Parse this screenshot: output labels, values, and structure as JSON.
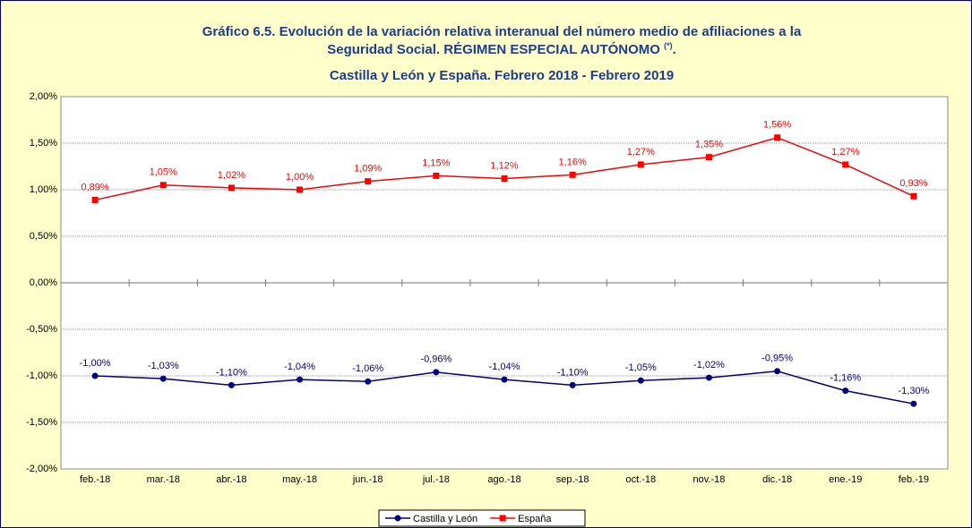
{
  "chart_data": {
    "type": "line",
    "title": [
      "Gráfico 6.5. Evolución de la variación relativa interanual del número medio de  afiliaciones a la",
      "Seguridad Social. RÉGIMEN ESPECIAL AUTÓNOMO"
    ],
    "title_note": "(*)",
    "title_end": ".",
    "subtitle": "Castilla y León y España. Febrero 2018 - Febrero 2019",
    "categories": [
      "feb.-18",
      "mar.-18",
      "abr.-18",
      "may.-18",
      "jun.-18",
      "jul.-18",
      "ago.-18",
      "sep.-18",
      "oct.-18",
      "nov.-18",
      "dic.-18",
      "ene.-19",
      "feb.-19"
    ],
    "series": [
      {
        "name": "Castilla y León",
        "color": "#000080",
        "values": [
          -1.0,
          -1.03,
          -1.1,
          -1.04,
          -1.06,
          -0.96,
          -1.04,
          -1.1,
          -1.05,
          -1.02,
          -0.95,
          -1.16,
          -1.3
        ],
        "value_labels": [
          "-1,00%",
          "-1,03%",
          "-1,10%",
          "-1,04%",
          "-1,06%",
          "-0,96%",
          "-1,04%",
          "-1,10%",
          "-1,05%",
          "-1,02%",
          "-0,95%",
          "-1,16%",
          "-1,30%"
        ]
      },
      {
        "name": "España",
        "color": "#ff0000",
        "values": [
          0.89,
          1.05,
          1.02,
          1.0,
          1.09,
          1.15,
          1.12,
          1.16,
          1.27,
          1.35,
          1.56,
          1.27,
          0.93
        ],
        "value_labels": [
          "0,89%",
          "1,05%",
          "1,02%",
          "1,00%",
          "1,09%",
          "1,15%",
          "1,12%",
          "1,16%",
          "1,27%",
          "1,35%",
          "1,56%",
          "1,27%",
          "0,93%"
        ]
      }
    ],
    "ylim": [
      -2,
      2
    ],
    "yticks": [
      {
        "value": -2,
        "label": "-2,00%"
      },
      {
        "value": -1.5,
        "label": "-1,50%"
      },
      {
        "value": -1,
        "label": "-1,00%"
      },
      {
        "value": -0.5,
        "label": "-0,50%"
      },
      {
        "value": 0,
        "label": "0,00%"
      },
      {
        "value": 0.5,
        "label": "0,50%"
      },
      {
        "value": 1,
        "label": "1,00%"
      },
      {
        "value": 1.5,
        "label": "1,50%"
      },
      {
        "value": 2,
        "label": "2,00%"
      }
    ],
    "grid": true,
    "legend": "bottom"
  }
}
